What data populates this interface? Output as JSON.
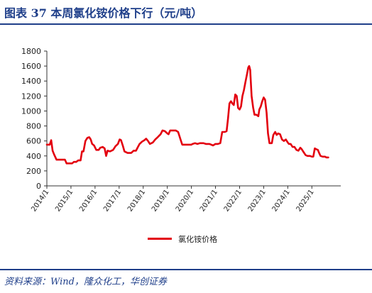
{
  "header": {
    "title": "图表  37    本周氯化铵价格下行（元/吨）"
  },
  "footer": {
    "source": "资料来源：Wind，隆众化工，华创证券"
  },
  "colors": {
    "accent": "#1f3f8a",
    "series": "#e3000f"
  },
  "chart_data": {
    "type": "line",
    "title": "",
    "xlabel": "",
    "ylabel": "",
    "ylim": [
      0,
      1800
    ],
    "yticks": [
      0,
      200,
      400,
      600,
      800,
      1000,
      1200,
      1400,
      1600,
      1800
    ],
    "xlim": [
      2014.0,
      2026.2
    ],
    "xticks": [
      {
        "value": 2014.0,
        "label": "2014/1"
      },
      {
        "value": 2015.0,
        "label": "2015/1"
      },
      {
        "value": 2016.0,
        "label": "2016/1"
      },
      {
        "value": 2017.0,
        "label": "2017/1"
      },
      {
        "value": 2018.0,
        "label": "2018/1"
      },
      {
        "value": 2019.0,
        "label": "2019/1"
      },
      {
        "value": 2020.0,
        "label": "2020/1"
      },
      {
        "value": 2021.0,
        "label": "2021/1"
      },
      {
        "value": 2022.0,
        "label": "2022/1"
      },
      {
        "value": 2023.0,
        "label": "2023/1"
      },
      {
        "value": 2024.0,
        "label": "2024/1"
      },
      {
        "value": 2025.0,
        "label": "2025/1"
      }
    ],
    "legend_position": "bottom",
    "grid": false,
    "series": [
      {
        "name": "氯化铵价格",
        "points": [
          [
            2014.0,
            550
          ],
          [
            2014.12,
            550
          ],
          [
            2014.18,
            610
          ],
          [
            2014.24,
            470
          ],
          [
            2014.3,
            420
          ],
          [
            2014.4,
            350
          ],
          [
            2014.55,
            350
          ],
          [
            2014.75,
            350
          ],
          [
            2014.82,
            300
          ],
          [
            2014.95,
            300
          ],
          [
            2015.05,
            300
          ],
          [
            2015.12,
            320
          ],
          [
            2015.22,
            320
          ],
          [
            2015.3,
            340
          ],
          [
            2015.4,
            340
          ],
          [
            2015.46,
            460
          ],
          [
            2015.52,
            460
          ],
          [
            2015.6,
            600
          ],
          [
            2015.68,
            640
          ],
          [
            2015.76,
            650
          ],
          [
            2015.82,
            620
          ],
          [
            2015.88,
            560
          ],
          [
            2015.96,
            540
          ],
          [
            2016.05,
            480
          ],
          [
            2016.15,
            480
          ],
          [
            2016.22,
            510
          ],
          [
            2016.32,
            520
          ],
          [
            2016.4,
            500
          ],
          [
            2016.46,
            400
          ],
          [
            2016.52,
            470
          ],
          [
            2016.62,
            460
          ],
          [
            2016.75,
            480
          ],
          [
            2016.85,
            530
          ],
          [
            2016.95,
            560
          ],
          [
            2017.02,
            620
          ],
          [
            2017.08,
            610
          ],
          [
            2017.15,
            540
          ],
          [
            2017.22,
            460
          ],
          [
            2017.35,
            440
          ],
          [
            2017.5,
            440
          ],
          [
            2017.6,
            470
          ],
          [
            2017.7,
            470
          ],
          [
            2017.78,
            520
          ],
          [
            2017.85,
            560
          ],
          [
            2017.95,
            590
          ],
          [
            2018.05,
            610
          ],
          [
            2018.12,
            630
          ],
          [
            2018.2,
            600
          ],
          [
            2018.28,
            560
          ],
          [
            2018.4,
            580
          ],
          [
            2018.5,
            620
          ],
          [
            2018.6,
            650
          ],
          [
            2018.72,
            690
          ],
          [
            2018.8,
            740
          ],
          [
            2018.9,
            730
          ],
          [
            2019.0,
            700
          ],
          [
            2019.05,
            690
          ],
          [
            2019.12,
            740
          ],
          [
            2019.22,
            740
          ],
          [
            2019.35,
            740
          ],
          [
            2019.45,
            720
          ],
          [
            2019.55,
            620
          ],
          [
            2019.62,
            550
          ],
          [
            2019.75,
            550
          ],
          [
            2019.9,
            550
          ],
          [
            2020.0,
            550
          ],
          [
            2020.05,
            560
          ],
          [
            2020.15,
            570
          ],
          [
            2020.25,
            560
          ],
          [
            2020.35,
            570
          ],
          [
            2020.5,
            570
          ],
          [
            2020.6,
            560
          ],
          [
            2020.75,
            560
          ],
          [
            2020.9,
            540
          ],
          [
            2021.0,
            560
          ],
          [
            2021.1,
            560
          ],
          [
            2021.2,
            570
          ],
          [
            2021.28,
            720
          ],
          [
            2021.38,
            720
          ],
          [
            2021.46,
            730
          ],
          [
            2021.52,
            900
          ],
          [
            2021.58,
            1100
          ],
          [
            2021.64,
            1130
          ],
          [
            2021.7,
            1100
          ],
          [
            2021.76,
            1080
          ],
          [
            2021.82,
            1220
          ],
          [
            2021.88,
            1200
          ],
          [
            2021.94,
            1040
          ],
          [
            2022.0,
            1020
          ],
          [
            2022.06,
            1060
          ],
          [
            2022.12,
            1200
          ],
          [
            2022.18,
            1280
          ],
          [
            2022.24,
            1380
          ],
          [
            2022.3,
            1480
          ],
          [
            2022.36,
            1580
          ],
          [
            2022.4,
            1600
          ],
          [
            2022.44,
            1550
          ],
          [
            2022.5,
            1200
          ],
          [
            2022.56,
            1050
          ],
          [
            2022.62,
            950
          ],
          [
            2022.7,
            950
          ],
          [
            2022.78,
            930
          ],
          [
            2022.82,
            1020
          ],
          [
            2022.88,
            1060
          ],
          [
            2022.94,
            1130
          ],
          [
            2023.0,
            1180
          ],
          [
            2023.06,
            1150
          ],
          [
            2023.12,
            980
          ],
          [
            2023.18,
            700
          ],
          [
            2023.24,
            570
          ],
          [
            2023.34,
            570
          ],
          [
            2023.4,
            680
          ],
          [
            2023.48,
            720
          ],
          [
            2023.54,
            680
          ],
          [
            2023.6,
            700
          ],
          [
            2023.68,
            690
          ],
          [
            2023.76,
            620
          ],
          [
            2023.84,
            600
          ],
          [
            2023.92,
            620
          ],
          [
            2024.0,
            580
          ],
          [
            2024.05,
            560
          ],
          [
            2024.12,
            560
          ],
          [
            2024.2,
            520
          ],
          [
            2024.28,
            520
          ],
          [
            2024.36,
            480
          ],
          [
            2024.44,
            470
          ],
          [
            2024.52,
            510
          ],
          [
            2024.58,
            490
          ],
          [
            2024.66,
            450
          ],
          [
            2024.74,
            410
          ],
          [
            2024.82,
            400
          ],
          [
            2024.92,
            400
          ],
          [
            2025.0,
            390
          ],
          [
            2025.06,
            390
          ],
          [
            2025.12,
            500
          ],
          [
            2025.18,
            490
          ],
          [
            2025.25,
            480
          ],
          [
            2025.3,
            440
          ],
          [
            2025.36,
            400
          ],
          [
            2025.45,
            390
          ],
          [
            2025.55,
            390
          ],
          [
            2025.6,
            380
          ],
          [
            2025.68,
            380
          ]
        ]
      }
    ]
  }
}
